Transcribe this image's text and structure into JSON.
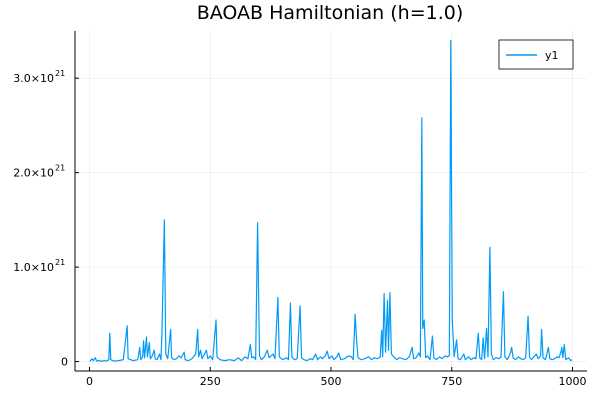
{
  "chart_data": {
    "type": "line",
    "title": "BAOAB Hamiltonian (h=1.0)",
    "xlabel": "",
    "ylabel": "",
    "xlim": [
      0,
      1000
    ],
    "ylim": [
      0,
      3.4e+21
    ],
    "grid": true,
    "legend": {
      "placement": "top-right",
      "entries": [
        "y1"
      ]
    },
    "x_ticks": [
      {
        "value": 0,
        "label": "0"
      },
      {
        "value": 250,
        "label": "250"
      },
      {
        "value": 500,
        "label": "500"
      },
      {
        "value": 750,
        "label": "750"
      },
      {
        "value": 1000,
        "label": "1000"
      }
    ],
    "y_ticks": [
      {
        "value": 0,
        "label": "0",
        "mantissa": "0",
        "exponent": ""
      },
      {
        "value": 1e+21,
        "label": "1.0×10^21",
        "mantissa": "1.0×10",
        "exponent": "21"
      },
      {
        "value": 2e+21,
        "label": "2.0×10^21",
        "mantissa": "2.0×10",
        "exponent": "21"
      },
      {
        "value": 3e+21,
        "label": "3.0×10^21",
        "mantissa": "3.0×10",
        "exponent": "21"
      }
    ],
    "series": [
      {
        "name": "y1",
        "color": "#009af9",
        "points": [
          [
            1,
            0.002
          ],
          [
            5,
            0.03
          ],
          [
            8,
            0.01
          ],
          [
            12,
            0.04
          ],
          [
            15,
            0.005
          ],
          [
            20,
            0.01
          ],
          [
            25,
            0.002
          ],
          [
            30,
            0.01
          ],
          [
            35,
            0.005
          ],
          [
            40,
            0.02
          ],
          [
            42,
            0.3
          ],
          [
            44,
            0.02
          ],
          [
            50,
            0.005
          ],
          [
            60,
            0.01
          ],
          [
            70,
            0.02
          ],
          [
            78,
            0.38
          ],
          [
            80,
            0.03
          ],
          [
            90,
            0.01
          ],
          [
            100,
            0.02
          ],
          [
            104,
            0.15
          ],
          [
            106,
            0.02
          ],
          [
            110,
            0.05
          ],
          [
            112,
            0.22
          ],
          [
            114,
            0.04
          ],
          [
            118,
            0.26
          ],
          [
            120,
            0.05
          ],
          [
            124,
            0.2
          ],
          [
            126,
            0.03
          ],
          [
            130,
            0.06
          ],
          [
            134,
            0.12
          ],
          [
            136,
            0.03
          ],
          [
            140,
            0.02
          ],
          [
            145,
            0.08
          ],
          [
            148,
            0.02
          ],
          [
            150,
            0.3
          ],
          [
            155,
            1.5
          ],
          [
            158,
            0.08
          ],
          [
            162,
            0.03
          ],
          [
            168,
            0.34
          ],
          [
            170,
            0.04
          ],
          [
            175,
            0.02
          ],
          [
            180,
            0.03
          ],
          [
            185,
            0.06
          ],
          [
            190,
            0.04
          ],
          [
            196,
            0.1
          ],
          [
            198,
            0.02
          ],
          [
            205,
            0.01
          ],
          [
            212,
            0.03
          ],
          [
            220,
            0.08
          ],
          [
            224,
            0.34
          ],
          [
            226,
            0.05
          ],
          [
            230,
            0.12
          ],
          [
            233,
            0.03
          ],
          [
            238,
            0.08
          ],
          [
            242,
            0.12
          ],
          [
            245,
            0.03
          ],
          [
            250,
            0.06
          ],
          [
            255,
            0.02
          ],
          [
            262,
            0.44
          ],
          [
            264,
            0.05
          ],
          [
            270,
            0.02
          ],
          [
            280,
            0.01
          ],
          [
            290,
            0.02
          ],
          [
            300,
            0.01
          ],
          [
            308,
            0.04
          ],
          [
            315,
            0.01
          ],
          [
            322,
            0.05
          ],
          [
            328,
            0.03
          ],
          [
            333,
            0.18
          ],
          [
            336,
            0.04
          ],
          [
            340,
            0.05
          ],
          [
            344,
            0.02
          ],
          [
            348,
            1.47
          ],
          [
            352,
            0.06
          ],
          [
            356,
            0.02
          ],
          [
            362,
            0.05
          ],
          [
            368,
            0.12
          ],
          [
            372,
            0.04
          ],
          [
            380,
            0.08
          ],
          [
            384,
            0.03
          ],
          [
            390,
            0.68
          ],
          [
            393,
            0.05
          ],
          [
            400,
            0.02
          ],
          [
            408,
            0.04
          ],
          [
            412,
            0.02
          ],
          [
            416,
            0.62
          ],
          [
            419,
            0.05
          ],
          [
            424,
            0.02
          ],
          [
            430,
            0.03
          ],
          [
            436,
            0.59
          ],
          [
            439,
            0.04
          ],
          [
            444,
            0.02
          ],
          [
            450,
            0.01
          ],
          [
            458,
            0.03
          ],
          [
            462,
            0.02
          ],
          [
            468,
            0.08
          ],
          [
            472,
            0.02
          ],
          [
            478,
            0.05
          ],
          [
            482,
            0.03
          ],
          [
            488,
            0.06
          ],
          [
            492,
            0.11
          ],
          [
            496,
            0.03
          ],
          [
            502,
            0.06
          ],
          [
            506,
            0.02
          ],
          [
            512,
            0.05
          ],
          [
            516,
            0.09
          ],
          [
            520,
            0.02
          ],
          [
            528,
            0.03
          ],
          [
            536,
            0.06
          ],
          [
            542,
            0.05
          ],
          [
            546,
            0.02
          ],
          [
            550,
            0.5
          ],
          [
            553,
            0.22
          ],
          [
            556,
            0.04
          ],
          [
            562,
            0.02
          ],
          [
            570,
            0.03
          ],
          [
            578,
            0.05
          ],
          [
            584,
            0.02
          ],
          [
            590,
            0.04
          ],
          [
            596,
            0.03
          ],
          [
            602,
            0.05
          ],
          [
            605,
            0.33
          ],
          [
            607,
            0.05
          ],
          [
            610,
            0.72
          ],
          [
            613,
            0.1
          ],
          [
            617,
            0.65
          ],
          [
            619,
            0.12
          ],
          [
            622,
            0.73
          ],
          [
            625,
            0.08
          ],
          [
            630,
            0.05
          ],
          [
            636,
            0.02
          ],
          [
            642,
            0.04
          ],
          [
            648,
            0.03
          ],
          [
            655,
            0.02
          ],
          [
            662,
            0.05
          ],
          [
            668,
            0.15
          ],
          [
            671,
            0.03
          ],
          [
            676,
            0.04
          ],
          [
            682,
            0.09
          ],
          [
            685,
            0.05
          ],
          [
            688,
            2.58
          ],
          [
            690,
            0.35
          ],
          [
            693,
            0.44
          ],
          [
            696,
            0.04
          ],
          [
            700,
            0.06
          ],
          [
            705,
            0.02
          ],
          [
            710,
            0.27
          ],
          [
            713,
            0.04
          ],
          [
            718,
            0.02
          ],
          [
            725,
            0.05
          ],
          [
            730,
            0.03
          ],
          [
            736,
            0.06
          ],
          [
            741,
            0.05
          ],
          [
            745,
            0.06
          ],
          [
            748,
            3.4
          ],
          [
            751,
            0.45
          ],
          [
            755,
            0.05
          ],
          [
            760,
            0.23
          ],
          [
            763,
            0.03
          ],
          [
            768,
            0.02
          ],
          [
            775,
            0.08
          ],
          [
            778,
            0.02
          ],
          [
            785,
            0.05
          ],
          [
            790,
            0.02
          ],
          [
            796,
            0.04
          ],
          [
            800,
            0.03
          ],
          [
            805,
            0.3
          ],
          [
            808,
            0.04
          ],
          [
            812,
            0.02
          ],
          [
            815,
            0.25
          ],
          [
            818,
            0.03
          ],
          [
            822,
            0.35
          ],
          [
            825,
            0.05
          ],
          [
            829,
            1.21
          ],
          [
            832,
            0.08
          ],
          [
            836,
            0.02
          ],
          [
            842,
            0.04
          ],
          [
            848,
            0.03
          ],
          [
            852,
            0.05
          ],
          [
            857,
            0.74
          ],
          [
            860,
            0.05
          ],
          [
            865,
            0.02
          ],
          [
            868,
            0.05
          ],
          [
            872,
            0.1
          ],
          [
            874,
            0.15
          ],
          [
            877,
            0.04
          ],
          [
            882,
            0.02
          ],
          [
            888,
            0.05
          ],
          [
            893,
            0.03
          ],
          [
            898,
            0.02
          ],
          [
            903,
            0.04
          ],
          [
            908,
            0.48
          ],
          [
            911,
            0.05
          ],
          [
            915,
            0.02
          ],
          [
            920,
            0.05
          ],
          [
            925,
            0.08
          ],
          [
            929,
            0.03
          ],
          [
            934,
            0.06
          ],
          [
            936,
            0.34
          ],
          [
            939,
            0.04
          ],
          [
            944,
            0.02
          ],
          [
            950,
            0.15
          ],
          [
            953,
            0.03
          ],
          [
            958,
            0.02
          ],
          [
            963,
            0.03
          ],
          [
            968,
            0.05
          ],
          [
            972,
            0.04
          ],
          [
            976,
            0.1
          ],
          [
            978,
            0.15
          ],
          [
            980,
            0.04
          ],
          [
            983,
            0.18
          ],
          [
            986,
            0.02
          ],
          [
            992,
            0.04
          ],
          [
            996,
            0.01
          ],
          [
            999,
            0.02
          ]
        ],
        "point_scale": 1e+21
      }
    ]
  }
}
